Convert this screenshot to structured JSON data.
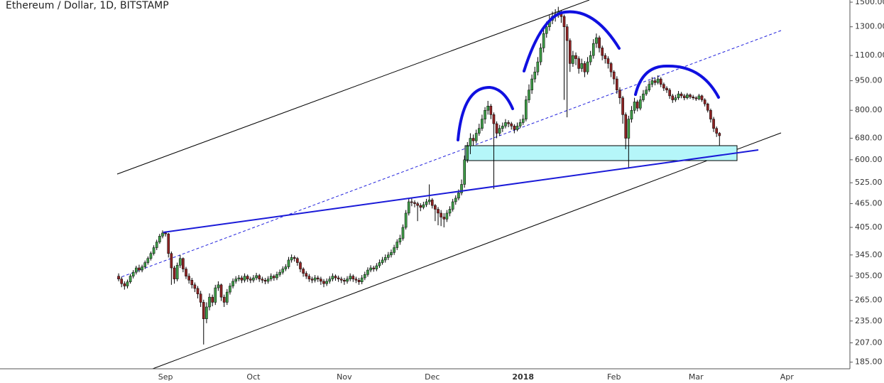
{
  "chart_data": {
    "type": "candlestick",
    "title": "Ethereum / Dollar, 1D, BITSTAMP",
    "y_scale": "log",
    "up_color": "#3e9b47",
    "down_color": "#8e2323",
    "ylim": [
      178,
      1519
    ],
    "yticks": [
      {
        "value": 1500,
        "label": "1500.00"
      },
      {
        "value": 1300,
        "label": "1300.00"
      },
      {
        "value": 1100,
        "label": "1100.00"
      },
      {
        "value": 950,
        "label": "950.00"
      },
      {
        "value": 800,
        "label": "800.00"
      },
      {
        "value": 680,
        "label": "680.00"
      },
      {
        "value": 600,
        "label": "600.00"
      },
      {
        "value": 525,
        "label": "525.00"
      },
      {
        "value": 465,
        "label": "465.00"
      },
      {
        "value": 405,
        "label": "405.00"
      },
      {
        "value": 345,
        "label": "345.00"
      },
      {
        "value": 305,
        "label": "305.00"
      },
      {
        "value": 265,
        "label": "265.00"
      },
      {
        "value": 235,
        "label": "235.00"
      },
      {
        "value": 207,
        "label": "207.00"
      },
      {
        "value": 185,
        "label": "185.00"
      }
    ],
    "categories": [
      null,
      null,
      null,
      null,
      null,
      null,
      null,
      null,
      null,
      null,
      null,
      null,
      null,
      null,
      null,
      null,
      "Sep",
      null,
      null,
      null,
      null,
      null,
      null,
      null,
      null,
      null,
      null,
      null,
      null,
      null,
      null,
      null,
      null,
      null,
      null,
      null,
      null,
      null,
      null,
      null,
      null,
      null,
      null,
      null,
      null,
      null,
      "Oct",
      null,
      null,
      null,
      null,
      null,
      null,
      null,
      null,
      null,
      null,
      null,
      null,
      null,
      null,
      null,
      null,
      null,
      null,
      null,
      null,
      null,
      null,
      null,
      null,
      null,
      null,
      null,
      null,
      null,
      null,
      "Nov",
      null,
      null,
      null,
      null,
      null,
      null,
      null,
      null,
      null,
      null,
      null,
      null,
      null,
      null,
      null,
      null,
      null,
      null,
      null,
      null,
      null,
      null,
      null,
      null,
      null,
      null,
      null,
      null,
      null,
      "Dec",
      null,
      null,
      null,
      null,
      null,
      null,
      null,
      null,
      null,
      null,
      null,
      null,
      null,
      null,
      null,
      null,
      null,
      null,
      null,
      null,
      null,
      null,
      null,
      null,
      null,
      null,
      null,
      null,
      null,
      null,
      "2018",
      null,
      null,
      null,
      null,
      null,
      null,
      null,
      null,
      null,
      null,
      null,
      null,
      null,
      null,
      null,
      null,
      null,
      null,
      null,
      null,
      null,
      null,
      null,
      null,
      null,
      null,
      null,
      null,
      null,
      null,
      "Feb",
      null,
      null,
      null,
      null,
      null,
      null,
      null,
      null,
      null,
      null,
      null,
      null,
      null,
      null,
      null,
      null,
      null,
      null,
      null,
      null,
      null,
      null,
      null,
      null,
      null,
      null,
      null,
      "Mar",
      null,
      null,
      null,
      null,
      null,
      null,
      null,
      null,
      null,
      null,
      null,
      null,
      null,
      null,
      null,
      null,
      null,
      null,
      null,
      null,
      null,
      null,
      null,
      null,
      null,
      null,
      null,
      null,
      null,
      null,
      "Apr",
      null,
      null,
      null,
      null,
      null,
      null,
      null,
      null,
      null,
      null,
      null,
      null,
      null,
      null,
      null,
      null,
      null,
      null,
      null,
      null,
      null
    ],
    "ohlc": [
      [
        305,
        310,
        296,
        300
      ],
      [
        300,
        304,
        286,
        292
      ],
      [
        292,
        296,
        282,
        288
      ],
      [
        288,
        299,
        284,
        295
      ],
      [
        295,
        309,
        292,
        305
      ],
      [
        305,
        316,
        301,
        312
      ],
      [
        312,
        324,
        308,
        320
      ],
      [
        320,
        326,
        312,
        316
      ],
      [
        316,
        326,
        312,
        322
      ],
      [
        322,
        334,
        318,
        330
      ],
      [
        330,
        342,
        326,
        338
      ],
      [
        338,
        352,
        334,
        348
      ],
      [
        348,
        365,
        344,
        360
      ],
      [
        360,
        377,
        355,
        372
      ],
      [
        372,
        390,
        368,
        385
      ],
      [
        385,
        398,
        380,
        392
      ],
      [
        392,
        396,
        384,
        390
      ],
      [
        390,
        392,
        340,
        348
      ],
      [
        348,
        352,
        290,
        320
      ],
      [
        320,
        324,
        292,
        300
      ],
      [
        300,
        330,
        296,
        325
      ],
      [
        325,
        345,
        320,
        338
      ],
      [
        338,
        340,
        312,
        318
      ],
      [
        318,
        322,
        300,
        305
      ],
      [
        305,
        310,
        292,
        298
      ],
      [
        298,
        302,
        284,
        290
      ],
      [
        290,
        294,
        278,
        284
      ],
      [
        284,
        288,
        268,
        275
      ],
      [
        275,
        280,
        255,
        262
      ],
      [
        262,
        266,
        205,
        238
      ],
      [
        238,
        262,
        232,
        255
      ],
      [
        255,
        276,
        250,
        270
      ],
      [
        270,
        274,
        256,
        262
      ],
      [
        262,
        290,
        258,
        285
      ],
      [
        285,
        296,
        280,
        290
      ],
      [
        290,
        292,
        264,
        270
      ],
      [
        270,
        274,
        255,
        262
      ],
      [
        262,
        283,
        258,
        278
      ],
      [
        278,
        293,
        274,
        288
      ],
      [
        288,
        301,
        284,
        296
      ],
      [
        296,
        305,
        292,
        300
      ],
      [
        300,
        307,
        296,
        302
      ],
      [
        302,
        306,
        293,
        298
      ],
      [
        298,
        310,
        294,
        305
      ],
      [
        305,
        308,
        295,
        300
      ],
      [
        300,
        304,
        293,
        298
      ],
      [
        298,
        307,
        294,
        302
      ],
      [
        302,
        311,
        298,
        306
      ],
      [
        306,
        309,
        295,
        300
      ],
      [
        300,
        304,
        293,
        298
      ],
      [
        298,
        302,
        291,
        296
      ],
      [
        296,
        305,
        292,
        300
      ],
      [
        300,
        310,
        296,
        305
      ],
      [
        305,
        308,
        297,
        302
      ],
      [
        302,
        313,
        298,
        308
      ],
      [
        308,
        317,
        304,
        312
      ],
      [
        312,
        323,
        308,
        318
      ],
      [
        318,
        327,
        314,
        322
      ],
      [
        322,
        341,
        318,
        335
      ],
      [
        335,
        346,
        330,
        340
      ],
      [
        340,
        344,
        332,
        338
      ],
      [
        338,
        341,
        324,
        330
      ],
      [
        330,
        333,
        312,
        318
      ],
      [
        318,
        321,
        304,
        310
      ],
      [
        310,
        314,
        300,
        305
      ],
      [
        305,
        309,
        295,
        300
      ],
      [
        300,
        304,
        293,
        298
      ],
      [
        298,
        307,
        294,
        302
      ],
      [
        302,
        306,
        295,
        300
      ],
      [
        300,
        304,
        290,
        296
      ],
      [
        296,
        300,
        286,
        292
      ],
      [
        292,
        301,
        288,
        296
      ],
      [
        296,
        305,
        292,
        300
      ],
      [
        300,
        310,
        296,
        305
      ],
      [
        305,
        308,
        297,
        302
      ],
      [
        302,
        306,
        295,
        300
      ],
      [
        300,
        304,
        293,
        298
      ],
      [
        298,
        302,
        290,
        296
      ],
      [
        296,
        305,
        292,
        300
      ],
      [
        300,
        310,
        296,
        305
      ],
      [
        305,
        308,
        295,
        300
      ],
      [
        300,
        304,
        293,
        298
      ],
      [
        298,
        302,
        290,
        295
      ],
      [
        295,
        307,
        291,
        302
      ],
      [
        302,
        313,
        298,
        308
      ],
      [
        308,
        321,
        304,
        316
      ],
      [
        316,
        325,
        312,
        320
      ],
      [
        320,
        324,
        313,
        318
      ],
      [
        318,
        329,
        314,
        324
      ],
      [
        324,
        336,
        320,
        330
      ],
      [
        330,
        341,
        326,
        335
      ],
      [
        335,
        346,
        330,
        340
      ],
      [
        340,
        351,
        335,
        345
      ],
      [
        345,
        356,
        340,
        350
      ],
      [
        350,
        366,
        345,
        360
      ],
      [
        360,
        378,
        355,
        372
      ],
      [
        372,
        388,
        366,
        380
      ],
      [
        380,
        412,
        375,
        405
      ],
      [
        405,
        448,
        400,
        440
      ],
      [
        440,
        478,
        434,
        470
      ],
      [
        470,
        480,
        458,
        468
      ],
      [
        468,
        474,
        455,
        465
      ],
      [
        465,
        470,
        420,
        460
      ],
      [
        460,
        466,
        445,
        455
      ],
      [
        455,
        470,
        450,
        462
      ],
      [
        462,
        478,
        456,
        470
      ],
      [
        470,
        520,
        462,
        475
      ],
      [
        475,
        480,
        452,
        460
      ],
      [
        460,
        464,
        420,
        450
      ],
      [
        450,
        456,
        410,
        440
      ],
      [
        440,
        448,
        408,
        430
      ],
      [
        430,
        440,
        405,
        425
      ],
      [
        425,
        448,
        418,
        440
      ],
      [
        440,
        458,
        432,
        450
      ],
      [
        450,
        478,
        444,
        470
      ],
      [
        470,
        488,
        462,
        480
      ],
      [
        480,
        505,
        474,
        495
      ],
      [
        495,
        535,
        488,
        520
      ],
      [
        520,
        615,
        510,
        600
      ],
      [
        600,
        665,
        590,
        650
      ],
      [
        650,
        700,
        620,
        680
      ],
      [
        680,
        695,
        650,
        670
      ],
      [
        670,
        715,
        660,
        700
      ],
      [
        700,
        740,
        690,
        720
      ],
      [
        720,
        780,
        710,
        760
      ],
      [
        760,
        815,
        740,
        800
      ],
      [
        800,
        845,
        780,
        820
      ],
      [
        820,
        830,
        760,
        780
      ],
      [
        780,
        790,
        506,
        740
      ],
      [
        740,
        750,
        680,
        700
      ],
      [
        700,
        735,
        690,
        720
      ],
      [
        720,
        745,
        705,
        730
      ],
      [
        730,
        760,
        720,
        745
      ],
      [
        745,
        755,
        725,
        740
      ],
      [
        740,
        748,
        715,
        730
      ],
      [
        730,
        738,
        700,
        715
      ],
      [
        715,
        745,
        708,
        730
      ],
      [
        730,
        760,
        722,
        745
      ],
      [
        745,
        780,
        735,
        760
      ],
      [
        760,
        870,
        750,
        850
      ],
      [
        850,
        930,
        835,
        900
      ],
      [
        900,
        985,
        880,
        960
      ],
      [
        960,
        1030,
        940,
        1000
      ],
      [
        1000,
        1090,
        980,
        1060
      ],
      [
        1060,
        1180,
        1040,
        1150
      ],
      [
        1150,
        1290,
        1120,
        1250
      ],
      [
        1250,
        1340,
        1220,
        1300
      ],
      [
        1300,
        1390,
        1270,
        1350
      ],
      [
        1350,
        1420,
        1320,
        1380
      ],
      [
        1380,
        1440,
        1340,
        1400
      ],
      [
        1400,
        1460,
        1370,
        1420
      ],
      [
        1420,
        1430,
        1330,
        1380
      ],
      [
        1380,
        1395,
        850,
        1300
      ],
      [
        1300,
        1320,
        768,
        1200
      ],
      [
        1200,
        1215,
        1000,
        1050
      ],
      [
        1050,
        1130,
        1030,
        1100
      ],
      [
        1100,
        1120,
        1040,
        1080
      ],
      [
        1080,
        1095,
        990,
        1020
      ],
      [
        1020,
        1080,
        1000,
        1050
      ],
      [
        1050,
        1065,
        970,
        1000
      ],
      [
        1000,
        1090,
        985,
        1060
      ],
      [
        1060,
        1130,
        1040,
        1100
      ],
      [
        1100,
        1210,
        1080,
        1180
      ],
      [
        1180,
        1250,
        1150,
        1220
      ],
      [
        1220,
        1235,
        1120,
        1150
      ],
      [
        1150,
        1165,
        1070,
        1100
      ],
      [
        1100,
        1115,
        1050,
        1080
      ],
      [
        1080,
        1095,
        1020,
        1050
      ],
      [
        1050,
        1060,
        970,
        1000
      ],
      [
        1000,
        1010,
        930,
        960
      ],
      [
        960,
        975,
        880,
        900
      ],
      [
        900,
        915,
        830,
        860
      ],
      [
        860,
        870,
        740,
        780
      ],
      [
        780,
        790,
        638,
        680
      ],
      [
        680,
        775,
        570,
        760
      ],
      [
        760,
        820,
        745,
        800
      ],
      [
        800,
        860,
        785,
        840
      ],
      [
        840,
        850,
        795,
        810
      ],
      [
        810,
        870,
        800,
        850
      ],
      [
        850,
        900,
        840,
        880
      ],
      [
        880,
        920,
        870,
        900
      ],
      [
        900,
        950,
        890,
        930
      ],
      [
        930,
        970,
        915,
        950
      ],
      [
        950,
        965,
        925,
        940
      ],
      [
        940,
        980,
        930,
        960
      ],
      [
        960,
        970,
        915,
        930
      ],
      [
        930,
        940,
        895,
        910
      ],
      [
        910,
        920,
        885,
        900
      ],
      [
        900,
        910,
        855,
        870
      ],
      [
        870,
        880,
        835,
        850
      ],
      [
        850,
        875,
        840,
        860
      ],
      [
        860,
        895,
        850,
        880
      ],
      [
        880,
        890,
        858,
        870
      ],
      [
        870,
        880,
        848,
        860
      ],
      [
        860,
        885,
        852,
        875
      ],
      [
        875,
        882,
        855,
        865
      ],
      [
        865,
        875,
        850,
        860
      ],
      [
        860,
        868,
        845,
        855
      ],
      [
        855,
        880,
        848,
        870
      ],
      [
        870,
        876,
        840,
        850
      ],
      [
        850,
        858,
        818,
        830
      ],
      [
        830,
        836,
        790,
        800
      ],
      [
        800,
        808,
        745,
        760
      ],
      [
        760,
        770,
        705,
        720
      ],
      [
        720,
        728,
        685,
        700
      ],
      [
        700,
        705,
        650,
        690
      ],
      null,
      null,
      null,
      null,
      null,
      null,
      null,
      null,
      null,
      null,
      null,
      null,
      null,
      null,
      null,
      null,
      null,
      null,
      null,
      null,
      null,
      null,
      null,
      null,
      null,
      null,
      null,
      null,
      null,
      null,
      null,
      null,
      null,
      null,
      null,
      null,
      null,
      null,
      null,
      null,
      null,
      null,
      null,
      null
    ]
  }
}
